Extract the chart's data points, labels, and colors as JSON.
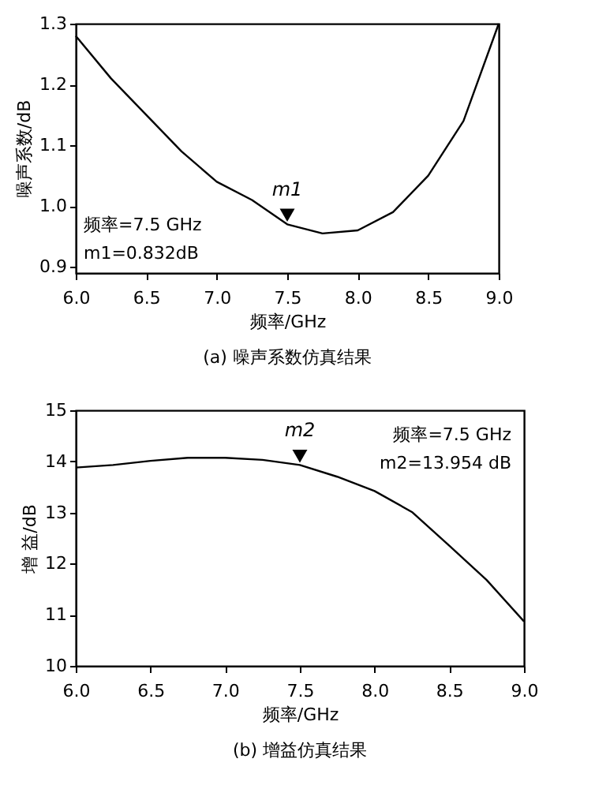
{
  "chart_data": [
    {
      "type": "line",
      "title": "(a)  噪声系数仿真结果",
      "xlabel": "频率/GHz",
      "ylabel": "噪声系数/dB",
      "x": [
        6.0,
        6.25,
        6.5,
        6.75,
        7.0,
        7.25,
        7.5,
        7.75,
        8.0,
        8.25,
        8.5,
        8.75,
        9.0
      ],
      "series": [
        {
          "color": "#000000",
          "values": [
            1.28,
            1.21,
            1.15,
            1.09,
            1.04,
            1.01,
            0.97,
            0.955,
            0.96,
            0.99,
            1.05,
            1.14,
            1.3
          ]
        },
        {
          "type": "scatter",
          "marker": "triangle",
          "color": "#000000",
          "x": [
            7.5
          ],
          "values": [
            0.985
          ]
        }
      ],
      "xlim": [
        6.0,
        9.0
      ],
      "xticks": [
        {
          "value": 6,
          "label": "6.0"
        },
        6.5,
        {
          "value": 7,
          "label": "7.0"
        },
        7.5,
        {
          "value": 8,
          "label": "8.0"
        },
        8.5,
        {
          "value": 9,
          "label": "9.0"
        }
      ],
      "ylim": [
        0.89,
        1.3
      ],
      "yticks": [
        0.9,
        {
          "value": 1,
          "label": "1.0"
        },
        1.1,
        1.2,
        1.3
      ],
      "grid": false,
      "annotations": [
        {
          "text": "m1",
          "x": 7.5,
          "y": 0.97
        },
        "频率=7.5 GHz",
        "m1=0.832dB"
      ]
    },
    {
      "type": "line",
      "title": "(b)  增益仿真结果",
      "xlabel": "频率/GHz",
      "ylabel": "增 益/dB",
      "x": [
        6.0,
        6.25,
        6.5,
        6.75,
        7.0,
        7.25,
        7.5,
        7.75,
        8.0,
        8.25,
        8.5,
        8.75,
        9.0
      ],
      "series": [
        {
          "color": "#000000",
          "values": [
            13.88,
            13.93,
            14.01,
            14.07,
            14.07,
            14.03,
            13.93,
            13.7,
            13.42,
            13.01,
            12.35,
            11.68,
            10.87
          ]
        },
        {
          "type": "scatter",
          "marker": "triangle",
          "color": "#000000",
          "x": [
            7.5
          ],
          "values": [
            14.1
          ]
        }
      ],
      "xlim": [
        6.0,
        9.0
      ],
      "xticks": [
        {
          "value": 6,
          "label": "6.0"
        },
        6.5,
        {
          "value": 7,
          "label": "7.0"
        },
        7.5,
        {
          "value": 8,
          "label": "8.0"
        },
        8.5,
        {
          "value": 9,
          "label": "9.0"
        }
      ],
      "ylim": [
        10,
        15
      ],
      "yticks": [
        10,
        11,
        12,
        13,
        14,
        15
      ],
      "grid": false,
      "annotations": [
        {
          "text": "m2",
          "x": 7.5,
          "y": 13.93
        },
        "频率=7.5 GHz",
        "m2=13.954 dB"
      ]
    }
  ]
}
